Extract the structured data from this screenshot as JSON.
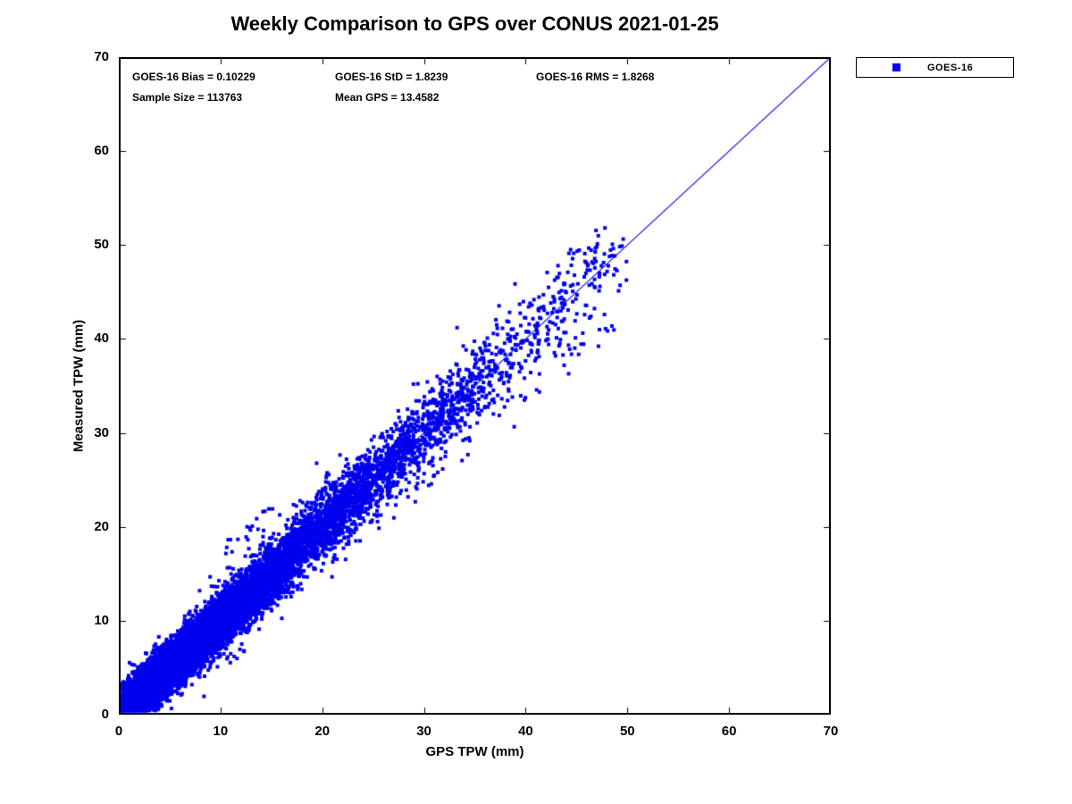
{
  "title": "Weekly Comparison to GPS over CONUS 2021-01-25",
  "annotations": {
    "bias": "GOES-16 Bias = 0.10229",
    "std": "GOES-16 StD = 1.8239",
    "rms": "GOES-16 RMS = 1.8268",
    "sample": "Sample Size = 113763",
    "mean_gps": "Mean GPS = 13.4582"
  },
  "legend": {
    "label": "GOES-16",
    "marker_color": "#0000ee"
  },
  "chart_data": {
    "type": "scatter",
    "title": "Weekly Comparison to GPS over CONUS 2021-01-25",
    "xlabel": "GPS TPW (mm)",
    "ylabel": "Measured TPW (mm)",
    "xlim": [
      0,
      70
    ],
    "ylim": [
      0,
      70
    ],
    "xticks": [
      0,
      10,
      20,
      30,
      40,
      50,
      60,
      70
    ],
    "yticks": [
      0,
      10,
      20,
      30,
      40,
      50,
      60,
      70
    ],
    "grid": false,
    "legend_position": "outside-top-right",
    "series": [
      {
        "name": "GOES-16",
        "marker": "square",
        "color": "#0000ee"
      }
    ],
    "reference_line": {
      "from": [
        0,
        0
      ],
      "to": [
        70,
        70
      ],
      "color": "#1515e6",
      "meaning": "1:1 line"
    },
    "stats": {
      "bias": 0.10229,
      "std": 1.8239,
      "rms": 1.8268,
      "sample_size": 113763,
      "mean_gps": 13.4582
    },
    "point_cloud": {
      "description": "dense cloud of GOES-16 vs GPS TPW pairs along y = x from ~0 to ~50 mm, densest below 15 mm",
      "n_total_actual": 113763,
      "render_points": 12000,
      "seed": 7,
      "x_range": [
        0.2,
        50
      ],
      "mix_exp_frac": 0.45,
      "exp_mean": 4.5,
      "gamma_theta": 8,
      "noise_base": 1.1,
      "noise_slope": 0.035,
      "marker_px": 4,
      "outliers_high": [
        {
          "count": 22,
          "x": [
            10.5,
            16
          ],
          "dy": [
            4.5,
            8.5
          ]
        },
        {
          "count": 6,
          "x": [
            44,
            47.5
          ],
          "dy": [
            3.0,
            5.0
          ]
        }
      ],
      "outliers_low": [
        {
          "count": 14,
          "x": [
            43,
            49
          ],
          "dy": [
            -8,
            -4
          ]
        },
        {
          "count": 8,
          "x": [
            29,
            35
          ],
          "dy": [
            -7,
            -4.5
          ]
        },
        {
          "count": 5,
          "x": [
            10,
            13
          ],
          "dy": [
            -6,
            -4
          ]
        }
      ]
    }
  }
}
